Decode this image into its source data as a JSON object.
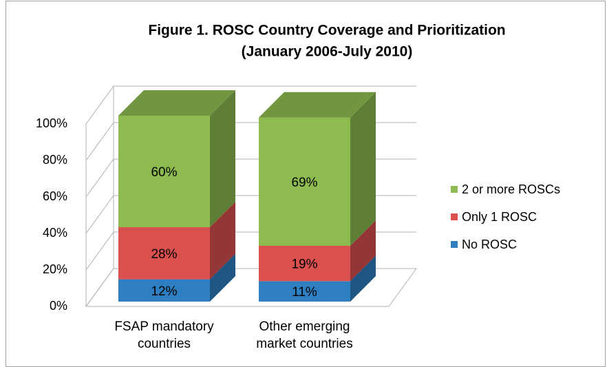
{
  "chart_data": {
    "type": "bar3d_stacked",
    "title": "Figure 1. ROSC Country Coverage and Prioritization",
    "subtitle": "(January 2006-July 2010)",
    "categories": [
      "FSAP mandatory countries",
      "Other emerging market countries"
    ],
    "series": [
      {
        "name": "No ROSC",
        "color": "#2e7fc1",
        "values": [
          12,
          11
        ],
        "value_labels": [
          "12%",
          "11%"
        ]
      },
      {
        "name": "Only 1 ROSC",
        "color": "#d9504e",
        "values": [
          28,
          19
        ],
        "value_labels": [
          "28%",
          "19%"
        ]
      },
      {
        "name": "2 or more ROSCs",
        "color": "#8dbb4f",
        "values": [
          60,
          69
        ],
        "value_labels": [
          "60%",
          "69%"
        ]
      }
    ],
    "ylim": [
      0,
      100
    ],
    "yticks": [
      {
        "value": 0,
        "label": "0%"
      },
      {
        "value": 20,
        "label": "20%"
      },
      {
        "value": 40,
        "label": "40%"
      },
      {
        "value": 60,
        "label": "60%"
      },
      {
        "value": 80,
        "label": "80%"
      },
      {
        "value": 100,
        "label": "100%"
      }
    ],
    "stacked": true,
    "grid": true,
    "legend": "right"
  }
}
